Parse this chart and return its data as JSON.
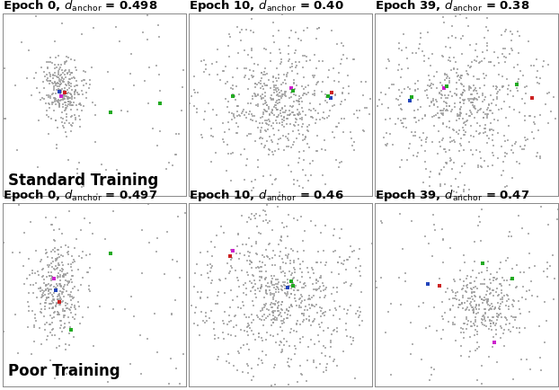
{
  "titles_row1": [
    "Epoch 0, $d_{\\mathrm{anchor}}$ = 0.498",
    "Epoch 10, $d_{\\mathrm{anchor}}$ = 0.40",
    "Epoch 39, $d_{\\mathrm{anchor}}$ = 0.38"
  ],
  "titles_row2": [
    "Epoch 0, $d_{\\mathrm{anchor}}$ = 0.497",
    "Epoch 10, $d_{\\mathrm{anchor}}$ = 0.46",
    "Epoch 39, $d_{\\mathrm{anchor}}$ = 0.47"
  ],
  "row_labels": [
    "Standard Training",
    "Poor Training"
  ],
  "background_color": "#ffffff",
  "gray_color": "#999999",
  "blue_color": "#2244bb",
  "red_color": "#cc2222",
  "green_color": "#22aa22",
  "magenta_color": "#cc22cc",
  "title_fontsize": 9.5,
  "label_fontsize": 12
}
